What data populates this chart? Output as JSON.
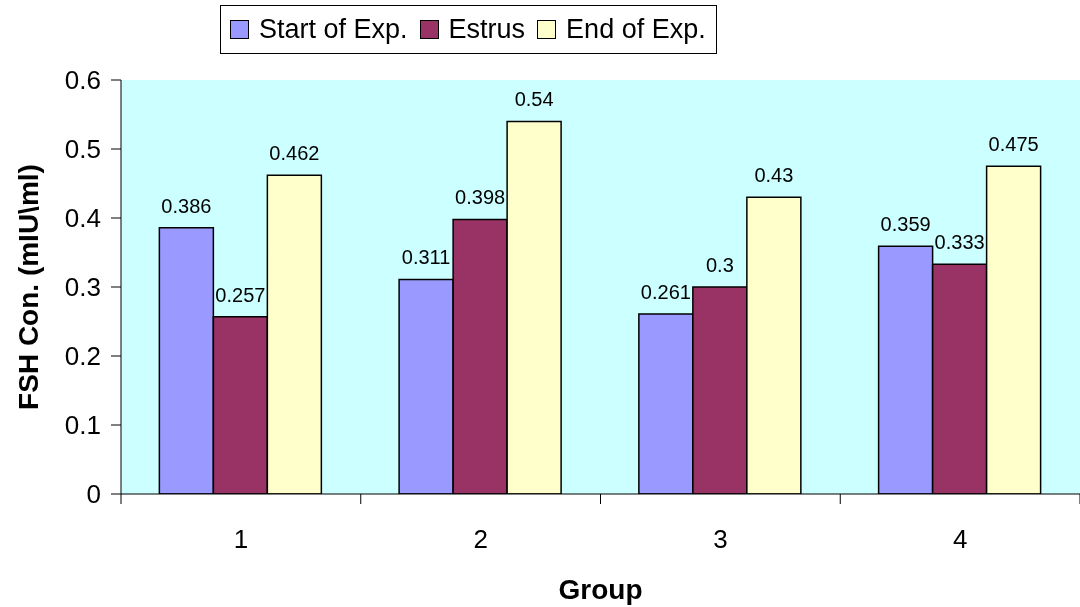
{
  "chart_data": {
    "type": "bar",
    "xlabel": "Group",
    "ylabel": "FSH Con. (mIU\\ml)",
    "categories": [
      "1",
      "2",
      "3",
      "4"
    ],
    "series": [
      {
        "name": "Start of Exp.",
        "color": "#9999ff",
        "values": [
          0.386,
          0.311,
          0.261,
          0.359
        ]
      },
      {
        "name": "Estrus",
        "color": "#993366",
        "values": [
          0.257,
          0.398,
          0.3,
          0.333
        ]
      },
      {
        "name": "End of Exp.",
        "color": "#ffffcc",
        "values": [
          0.462,
          0.54,
          0.43,
          0.475
        ]
      }
    ],
    "ylim": [
      0,
      0.6
    ],
    "yticks": [
      0,
      0.1,
      0.2,
      0.3,
      0.4,
      0.5,
      0.6
    ],
    "data_labels": true,
    "legend": "top"
  }
}
